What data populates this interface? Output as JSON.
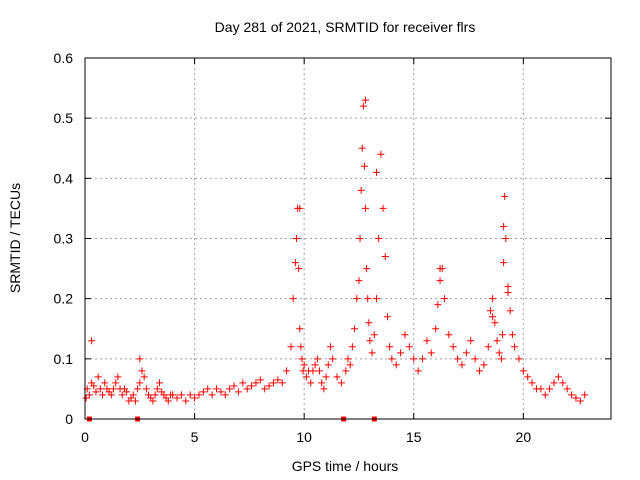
{
  "chart_data": {
    "type": "scatter",
    "title": "Day 281 of 2021, SRMTID for receiver flrs",
    "xlabel": "GPS time / hours",
    "ylabel": "SRMTID / TECUs",
    "xlim": [
      0,
      24
    ],
    "ylim": [
      0,
      0.6
    ],
    "x_ticks": [
      0,
      5,
      10,
      15,
      20
    ],
    "x_tick_labels": [
      "0",
      "5",
      "10",
      "15",
      "20"
    ],
    "y_ticks": [
      0,
      0.1,
      0.2,
      0.3,
      0.4,
      0.5,
      0.6
    ],
    "y_tick_labels": [
      "0",
      "0.1",
      "0.2",
      "0.3",
      "0.4",
      "0.5",
      "0.6"
    ],
    "grid": true,
    "marker": "+",
    "color": "#ff0000",
    "series": [
      {
        "name": "SRMTID",
        "x": [
          0.05,
          0.1,
          0.2,
          0.3,
          0.4,
          0.5,
          0.6,
          0.7,
          0.8,
          0.9,
          1.0,
          1.1,
          1.2,
          1.3,
          1.4,
          1.5,
          1.6,
          1.7,
          1.8,
          1.9,
          2.0,
          2.1,
          2.2,
          2.3,
          2.4,
          2.5,
          2.6,
          2.7,
          2.8,
          2.9,
          3.0,
          3.1,
          3.2,
          3.3,
          3.4,
          3.5,
          3.6,
          3.7,
          3.8,
          3.9,
          4.0,
          4.2,
          4.4,
          4.6,
          4.8,
          5.0,
          5.2,
          5.4,
          5.6,
          5.8,
          6.0,
          6.2,
          6.4,
          6.6,
          6.8,
          7.0,
          7.2,
          7.4,
          7.6,
          7.8,
          8.0,
          8.2,
          8.4,
          8.6,
          8.8,
          9.0,
          9.2,
          9.4,
          9.5,
          9.6,
          9.65,
          9.7,
          9.75,
          9.8,
          9.85,
          9.9,
          9.95,
          10.0,
          10.1,
          10.2,
          10.3,
          10.4,
          10.5,
          10.6,
          10.7,
          10.8,
          10.9,
          11.0,
          11.1,
          11.2,
          11.3,
          11.5,
          11.7,
          11.9,
          12.0,
          12.1,
          12.2,
          12.3,
          12.4,
          12.5,
          12.55,
          12.6,
          12.65,
          12.7,
          12.75,
          12.8,
          12.85,
          12.9,
          12.95,
          13.0,
          13.1,
          13.2,
          13.3,
          13.4,
          13.5,
          13.6,
          13.7,
          13.8,
          13.9,
          14.0,
          14.2,
          14.4,
          14.6,
          14.8,
          15.0,
          15.2,
          15.4,
          15.6,
          15.8,
          16.0,
          16.1,
          16.2,
          16.3,
          16.4,
          16.6,
          16.8,
          17.0,
          17.2,
          17.4,
          17.6,
          17.8,
          18.0,
          18.2,
          18.4,
          18.5,
          18.6,
          18.7,
          18.8,
          18.9,
          19.0,
          19.05,
          19.1,
          19.15,
          19.2,
          19.3,
          19.4,
          19.5,
          19.6,
          19.8,
          20.0,
          20.2,
          20.4,
          20.6,
          20.8,
          21.0,
          21.2,
          21.4,
          21.6,
          21.8,
          22.0,
          22.2,
          22.4,
          22.6,
          22.8,
          0.3,
          2.5,
          9.8,
          12.8,
          13.3,
          16.2,
          18.6,
          19.1,
          19.3
        ],
        "y": [
          0.035,
          0.05,
          0.04,
          0.06,
          0.055,
          0.045,
          0.07,
          0.05,
          0.04,
          0.06,
          0.05,
          0.045,
          0.04,
          0.05,
          0.06,
          0.07,
          0.05,
          0.04,
          0.05,
          0.045,
          0.03,
          0.035,
          0.04,
          0.03,
          0.05,
          0.06,
          0.08,
          0.07,
          0.05,
          0.04,
          0.035,
          0.03,
          0.04,
          0.05,
          0.06,
          0.045,
          0.04,
          0.035,
          0.03,
          0.04,
          0.04,
          0.035,
          0.04,
          0.03,
          0.04,
          0.035,
          0.04,
          0.045,
          0.05,
          0.04,
          0.05,
          0.045,
          0.04,
          0.05,
          0.055,
          0.045,
          0.06,
          0.05,
          0.055,
          0.06,
          0.065,
          0.05,
          0.055,
          0.06,
          0.065,
          0.06,
          0.08,
          0.12,
          0.2,
          0.26,
          0.3,
          0.35,
          0.25,
          0.15,
          0.12,
          0.1,
          0.08,
          0.09,
          0.07,
          0.08,
          0.06,
          0.08,
          0.09,
          0.1,
          0.08,
          0.06,
          0.05,
          0.07,
          0.09,
          0.12,
          0.1,
          0.07,
          0.06,
          0.08,
          0.1,
          0.09,
          0.12,
          0.15,
          0.2,
          0.23,
          0.3,
          0.38,
          0.45,
          0.52,
          0.42,
          0.35,
          0.25,
          0.2,
          0.16,
          0.13,
          0.11,
          0.14,
          0.2,
          0.3,
          0.44,
          0.35,
          0.27,
          0.17,
          0.12,
          0.1,
          0.09,
          0.11,
          0.14,
          0.12,
          0.1,
          0.08,
          0.1,
          0.13,
          0.11,
          0.15,
          0.19,
          0.23,
          0.25,
          0.2,
          0.14,
          0.12,
          0.1,
          0.09,
          0.11,
          0.13,
          0.1,
          0.08,
          0.09,
          0.12,
          0.18,
          0.2,
          0.16,
          0.13,
          0.11,
          0.1,
          0.14,
          0.26,
          0.37,
          0.3,
          0.22,
          0.18,
          0.14,
          0.12,
          0.1,
          0.08,
          0.07,
          0.06,
          0.05,
          0.05,
          0.04,
          0.05,
          0.06,
          0.07,
          0.06,
          0.05,
          0.04,
          0.035,
          0.03,
          0.04,
          0.13,
          0.1,
          0.35,
          0.53,
          0.41,
          0.25,
          0.17,
          0.32,
          0.21
        ]
      }
    ],
    "zero_markers_x": [
      0.2,
      2.4,
      11.8,
      13.2
    ]
  }
}
